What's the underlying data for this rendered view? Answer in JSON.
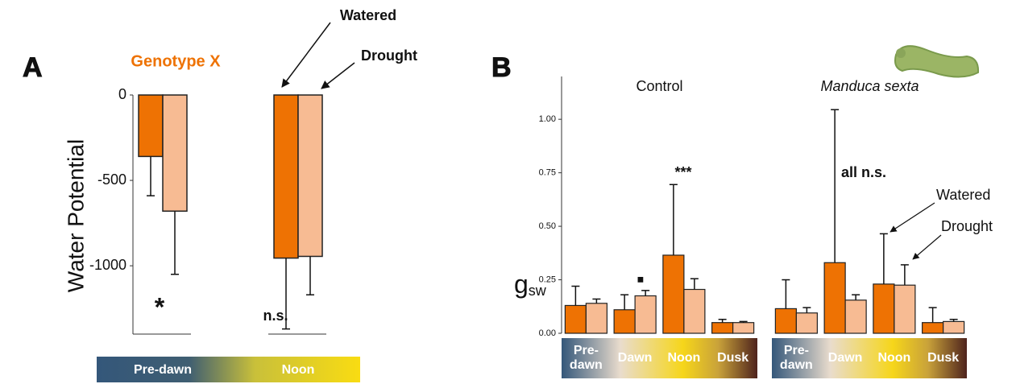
{
  "chart_data": [
    {
      "type": "bar",
      "panel_label": "A",
      "title": "Genotype X",
      "ylabel": "Water Potential",
      "categories": [
        "Pre-dawn",
        "Noon"
      ],
      "series": [
        {
          "name": "Watered",
          "color": "#ee7203",
          "values": [
            -360,
            -955
          ],
          "errors": [
            230,
            415
          ]
        },
        {
          "name": "Drought",
          "color": "#f7bb93",
          "values": [
            -680,
            -945
          ],
          "errors": [
            370,
            225
          ]
        }
      ],
      "ylim": [
        -1400,
        0
      ],
      "yticks": [
        0,
        -500,
        -1000
      ],
      "annotations": [
        "*",
        "n.s."
      ]
    },
    {
      "type": "bar",
      "panel_label": "B",
      "ylabel": "g",
      "ylabel_sub": "sw",
      "categories": [
        "Pre-dawn",
        "Dawn",
        "Noon",
        "Dusk"
      ],
      "series": [
        {
          "name": "Watered",
          "color": "#ee7203"
        },
        {
          "name": "Drought",
          "color": "#f7bb93"
        }
      ],
      "ylim": [
        0,
        1.2
      ],
      "yticks": [
        {
          "value": 0,
          "label": "0.00"
        },
        {
          "value": 0.25,
          "label": "0.25"
        },
        {
          "value": 0.5,
          "label": "0.50"
        },
        {
          "value": 0.75,
          "label": "0.75"
        },
        {
          "value": 1,
          "label": "1.00"
        }
      ],
      "facets": [
        {
          "title": "Control",
          "series": [
            {
              "values": [
                0.13,
                0.11,
                0.365,
                0.05
              ],
              "errors": [
                0.09,
                0.07,
                0.33,
                0.015
              ]
            },
            {
              "values": [
                0.14,
                0.175,
                0.205,
                0.05
              ],
              "errors": [
                0.02,
                0.025,
                0.05,
                0.005
              ]
            }
          ],
          "annotations": [
            "***",
            "■"
          ]
        },
        {
          "title": "Manduca sexta",
          "series": [
            {
              "values": [
                0.115,
                0.33,
                0.23,
                0.05
              ],
              "errors": [
                0.135,
                0.715,
                0.235,
                0.07
              ]
            },
            {
              "values": [
                0.095,
                0.155,
                0.225,
                0.055
              ],
              "errors": [
                0.025,
                0.025,
                0.095,
                0.01
              ]
            }
          ],
          "annotations": [
            "all n.s."
          ]
        }
      ]
    }
  ]
}
